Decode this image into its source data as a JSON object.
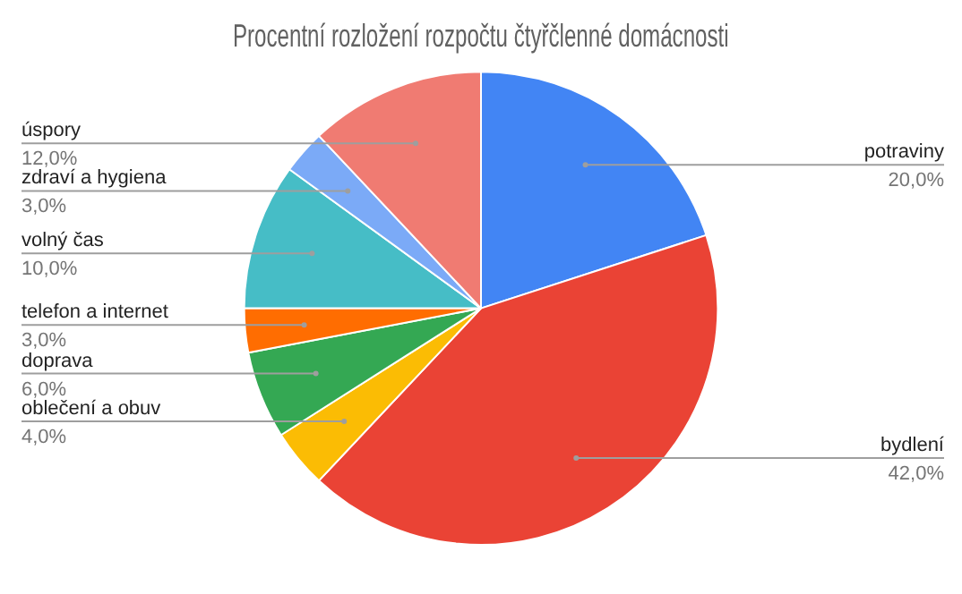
{
  "chart_data": {
    "type": "pie",
    "title": "Procentní rozložení rozpočtu čtyřčlenné domácnosti",
    "categories": [
      "potraviny",
      "bydlení",
      "oblečení a obuv",
      "doprava",
      "telefon a internet",
      "volný čas",
      "zdraví a hygiena",
      "úspory"
    ],
    "values": [
      20,
      42,
      4,
      6,
      3,
      10,
      3,
      12
    ],
    "value_labels": [
      "20,0%",
      "42,0%",
      "4,0%",
      "6,0%",
      "3,0%",
      "10,0%",
      "3,0%",
      "12,0%"
    ],
    "colors": [
      "#4285f4",
      "#ea4335",
      "#fbbc04",
      "#34a853",
      "#ff6d01",
      "#46bdc6",
      "#7baaf7",
      "#f07b72"
    ],
    "legend": false
  }
}
